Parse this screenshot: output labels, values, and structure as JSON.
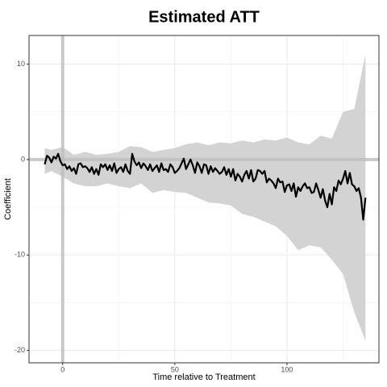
{
  "chart_data": {
    "type": "line",
    "title": "Estimated ATT",
    "x_label": "Time relative to Treatment",
    "y_label": "Coefficient",
    "xlim": [
      -15,
      141
    ],
    "ylim": [
      -21.3,
      13
    ],
    "xticks": [
      0,
      50,
      100
    ],
    "yticks": [
      -20,
      -10,
      0,
      10
    ],
    "xminor": [
      25,
      75,
      125
    ],
    "yminor": [
      -15,
      -5,
      5
    ],
    "grid": true,
    "vline": 0,
    "hline": 0,
    "x": [
      -8,
      -7,
      -6,
      -5,
      -4,
      -3,
      -2,
      -1,
      0,
      1,
      2,
      3,
      4,
      5,
      6,
      7,
      8,
      9,
      10,
      11,
      12,
      13,
      14,
      15,
      16,
      17,
      18,
      19,
      20,
      21,
      22,
      23,
      24,
      25,
      26,
      27,
      28,
      29,
      30,
      31,
      32,
      33,
      34,
      35,
      36,
      37,
      38,
      39,
      40,
      41,
      42,
      43,
      44,
      45,
      46,
      47,
      48,
      49,
      50,
      51,
      52,
      53,
      54,
      55,
      56,
      57,
      58,
      59,
      60,
      61,
      62,
      63,
      64,
      65,
      66,
      67,
      68,
      69,
      70,
      71,
      72,
      73,
      74,
      75,
      76,
      77,
      78,
      79,
      80,
      81,
      82,
      83,
      84,
      85,
      86,
      87,
      88,
      89,
      90,
      91,
      92,
      93,
      94,
      95,
      96,
      97,
      98,
      99,
      100,
      101,
      102,
      103,
      104,
      105,
      106,
      107,
      108,
      109,
      110,
      111,
      112,
      113,
      114,
      115,
      116,
      117,
      118,
      119,
      120,
      121,
      122,
      123,
      124,
      125,
      126,
      127,
      128,
      129,
      130,
      131,
      132,
      133,
      134,
      135
    ],
    "series": [
      {
        "color": "#000000",
        "values": [
          -0.5,
          0.4,
          0.2,
          -0.3,
          0.3,
          0.1,
          0.6,
          -0.2,
          -0.6,
          -0.5,
          -1,
          -0.7,
          -1.2,
          -0.9,
          -1.5,
          -0.5,
          -0.4,
          -0.8,
          -0.7,
          -0.9,
          -1.3,
          -0.8,
          -1.5,
          -1,
          -1.6,
          -0.5,
          -0.8,
          -0.5,
          -1.1,
          -0.6,
          -1.2,
          -0.4,
          -1.4,
          -1.0,
          -0.8,
          -1.3,
          -0.5,
          -1.2,
          -1.5,
          0.6,
          -0.2,
          -0.6,
          -0.3,
          -0.9,
          -0.4,
          -0.7,
          -1.1,
          -0.5,
          -1.2,
          -0.9,
          -0.6,
          -1.3,
          -0.4,
          -1.1,
          -1.0,
          -1.3,
          -0.5,
          -0.8,
          -1.4,
          -1.2,
          -0.9,
          -0.4,
          0.1,
          -1.0,
          -0.5,
          0,
          -0.6,
          -1.4,
          -0.3,
          -0.7,
          -1.4,
          -0.5,
          -0.6,
          -1.5,
          -0.7,
          -1.3,
          -0.9,
          -1.2,
          -1.5,
          -1.3,
          -0.8,
          -1.6,
          -1.0,
          -1.8,
          -1.0,
          -2.2,
          -1.5,
          -1.8,
          -2.3,
          -1.6,
          -1.2,
          -2.0,
          -1.1,
          -2.3,
          -2.0,
          -1.1,
          -1.2,
          -1.5,
          -1.2,
          -2.4,
          -2.0,
          -2.2,
          -2.5,
          -3.0,
          -2.0,
          -2.4,
          -2.3,
          -3.4,
          -2.7,
          -2.6,
          -3.3,
          -2.5,
          -3.9,
          -2.9,
          -3.3,
          -2.8,
          -2.5,
          -3.0,
          -2.9,
          -3.5,
          -3.4,
          -2.5,
          -3.2,
          -4.0,
          -3.1,
          -4.3,
          -5.0,
          -3.6,
          -4.7,
          -2.9,
          -3.3,
          -2.2,
          -2.6,
          -2.0,
          -1.2,
          -2.5,
          -1.4,
          -2.6,
          -2.8,
          -3.3,
          -3.0,
          -4.0,
          -6.3,
          -4.0
        ]
      }
    ],
    "band": {
      "color": "#d3d3d3",
      "x": [
        -8,
        -5,
        0,
        5,
        10,
        15,
        20,
        25,
        30,
        35,
        40,
        45,
        50,
        55,
        60,
        65,
        70,
        75,
        80,
        85,
        90,
        95,
        100,
        105,
        110,
        115,
        120,
        125,
        130,
        135
      ],
      "upper": [
        1.2,
        1.0,
        1.3,
        0.5,
        0.8,
        0.5,
        0.6,
        0.8,
        1.4,
        1.3,
        0.8,
        1.0,
        1.2,
        1.6,
        1.8,
        1.5,
        1.8,
        1.7,
        2.0,
        1.8,
        2.1,
        2.0,
        2.3,
        1.8,
        1.6,
        2.5,
        2.2,
        5.0,
        5.3,
        11.0
      ],
      "lower": [
        -1.5,
        -1.2,
        -1.8,
        -2.5,
        -2.8,
        -2.8,
        -2.5,
        -2.8,
        -3.0,
        -2.5,
        -3.5,
        -3.2,
        -3.4,
        -3.5,
        -4.0,
        -4.5,
        -4.6,
        -4.8,
        -5.7,
        -6.0,
        -6.5,
        -7.0,
        -8.0,
        -9.5,
        -9.0,
        -9.2,
        -10.5,
        -12,
        -16,
        -19
      ]
    }
  }
}
